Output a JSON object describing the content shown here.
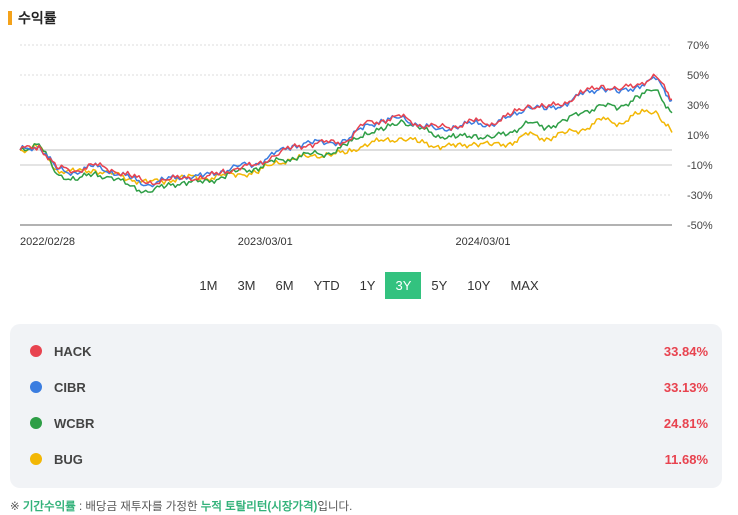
{
  "header": {
    "title": "수익률"
  },
  "chart_data": {
    "type": "line",
    "y_ticks": [
      "70%",
      "50%",
      "30%",
      "10%",
      "-10%",
      "-30%",
      "-50%"
    ],
    "ylim": [
      -50,
      70
    ],
    "x_ticks": [
      "2022/02/28",
      "2023/03/01",
      "2024/03/01"
    ],
    "x": [
      "2022-02-28",
      "2022-04-01",
      "2022-05-01",
      "2022-06-01",
      "2022-07-01",
      "2022-08-01",
      "2022-09-01",
      "2022-10-01",
      "2022-11-01",
      "2022-12-01",
      "2023-01-01",
      "2023-02-01",
      "2023-03-01",
      "2023-04-01",
      "2023-05-01",
      "2023-06-01",
      "2023-07-01",
      "2023-08-01",
      "2023-09-01",
      "2023-10-01",
      "2023-11-01",
      "2023-12-01",
      "2024-01-01",
      "2024-02-01",
      "2024-03-01",
      "2024-04-01",
      "2024-05-01",
      "2024-06-01",
      "2024-07-01",
      "2024-08-01",
      "2024-09-01",
      "2024-10-01",
      "2024-11-01",
      "2024-12-01",
      "2025-01-01",
      "2025-02-01",
      "2025-02-28"
    ],
    "series": [
      {
        "name": "HACK",
        "color": "#e8434f",
        "values": [
          0,
          3,
          -12,
          -14,
          -10,
          -13,
          -17,
          -22,
          -20,
          -18,
          -19,
          -15,
          -12,
          -10,
          -4,
          2,
          4,
          5,
          6,
          18,
          20,
          22,
          17,
          15,
          16,
          19,
          18,
          23,
          30,
          28,
          32,
          38,
          43,
          40,
          44,
          49,
          33.84
        ]
      },
      {
        "name": "CIBR",
        "color": "#3b7de0",
        "values": [
          0,
          3,
          -13,
          -15,
          -11,
          -14,
          -19,
          -23,
          -20,
          -17,
          -18,
          -14,
          -11,
          -9,
          -3,
          3,
          5,
          5,
          6,
          17,
          19,
          22,
          16,
          14,
          15,
          18,
          17,
          22,
          29,
          27,
          31,
          37,
          42,
          38,
          43,
          47,
          33.13
        ]
      },
      {
        "name": "WCBR",
        "color": "#2e9e46",
        "values": [
          0,
          4,
          -16,
          -20,
          -16,
          -18,
          -24,
          -28,
          -24,
          -21,
          -22,
          -18,
          -14,
          -12,
          -8,
          -5,
          -3,
          -2,
          3,
          12,
          13,
          20,
          14,
          10,
          8,
          10,
          8,
          12,
          18,
          15,
          20,
          25,
          30,
          28,
          36,
          40,
          24.81
        ]
      },
      {
        "name": "BUG",
        "color": "#f2b705",
        "values": [
          0,
          2,
          -13,
          -15,
          -13,
          -16,
          -19,
          -22,
          -20,
          -18,
          -19,
          -17,
          -16,
          -15,
          -9,
          -6,
          -4,
          -3,
          -2,
          4,
          6,
          8,
          5,
          3,
          2,
          5,
          3,
          5,
          10,
          8,
          11,
          14,
          20,
          18,
          24,
          26,
          11.68
        ]
      }
    ]
  },
  "periods": {
    "items": [
      "1M",
      "3M",
      "6M",
      "YTD",
      "1Y",
      "3Y",
      "5Y",
      "10Y",
      "MAX"
    ],
    "active": "3Y"
  },
  "legend": [
    {
      "name": "HACK",
      "value": "33.84%",
      "color": "#e8434f"
    },
    {
      "name": "CIBR",
      "value": "33.13%",
      "color": "#3b7de0"
    },
    {
      "name": "WCBR",
      "value": "24.81%",
      "color": "#2e9e46"
    },
    {
      "name": "BUG",
      "value": "11.68%",
      "color": "#f2b705"
    }
  ],
  "footnote": {
    "prefix": "※ ",
    "term": "기간수익률",
    "mid": " : 배당금 재투자를 가정한 ",
    "highlight": "누적 토탈리턴(시장가격)",
    "suffix": "입니다."
  }
}
